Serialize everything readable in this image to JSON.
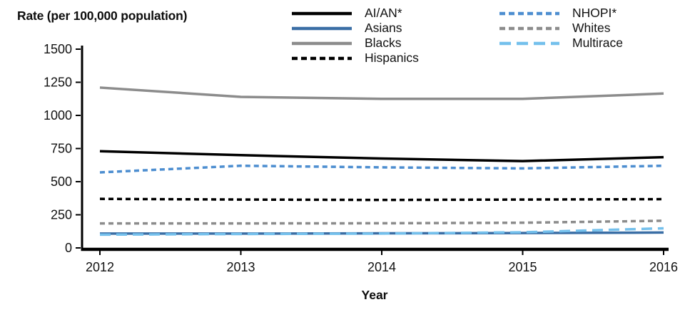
{
  "title": "Rate (per 100,000 population)",
  "chart_data": {
    "type": "line",
    "x": [
      2012,
      2013,
      2014,
      2015,
      2016
    ],
    "xlabel": "Year",
    "ylabel": "Rate (per 100,000 population)",
    "ylim": [
      0,
      1500
    ],
    "yticks": [
      1500,
      1250,
      1000,
      750,
      500,
      250,
      0
    ],
    "grid": false,
    "legend_position": "top",
    "series": [
      {
        "name": "AI/AN*",
        "values": [
          730,
          700,
          675,
          655,
          685
        ],
        "color": "#000000",
        "style": "solid"
      },
      {
        "name": "Asians",
        "values": [
          108,
          108,
          110,
          112,
          116
        ],
        "color": "#3a6ea5",
        "style": "solid"
      },
      {
        "name": "Blacks",
        "values": [
          1210,
          1140,
          1125,
          1125,
          1165
        ],
        "color": "#8c8c8c",
        "style": "solid"
      },
      {
        "name": "Hispanics",
        "values": [
          370,
          365,
          362,
          365,
          368
        ],
        "color": "#000000",
        "style": "dashed"
      },
      {
        "name": "NHOPI*",
        "values": [
          570,
          620,
          608,
          600,
          620
        ],
        "color": "#4d8ed0",
        "style": "dashed"
      },
      {
        "name": "Whites",
        "values": [
          185,
          185,
          186,
          190,
          205
        ],
        "color": "#8c8c8c",
        "style": "dashed"
      },
      {
        "name": "Multirace",
        "values": [
          100,
          105,
          108,
          118,
          148
        ],
        "color": "#74c0ec",
        "style": "long-dashed"
      }
    ]
  }
}
